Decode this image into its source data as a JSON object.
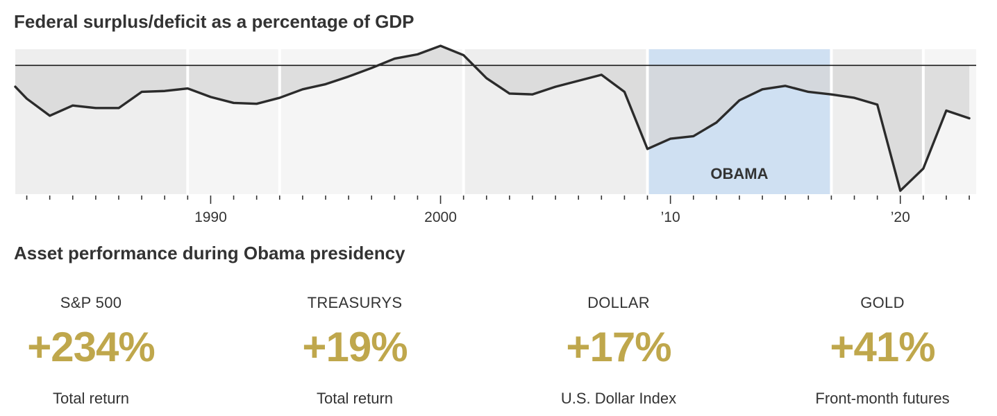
{
  "chart_data": {
    "type": "line",
    "title": "Federal surplus/deficit as a percentage of GDP",
    "xlabel": "",
    "ylabel": "",
    "xlim": [
      1981.5,
      2023.3
    ],
    "ylim": [
      -15.1,
      1.9
    ],
    "baseline": 0,
    "x_tick_labels": [
      {
        "year": 1990,
        "label": "1990"
      },
      {
        "year": 2000,
        "label": "2000"
      },
      {
        "year": 2010,
        "label": "’10"
      },
      {
        "year": 2020,
        "label": "’20"
      }
    ],
    "x": [
      1981,
      1982,
      1983,
      1984,
      1985,
      1986,
      1987,
      1988,
      1989,
      1990,
      1991,
      1992,
      1993,
      1994,
      1995,
      1996,
      1997,
      1998,
      1999,
      2000,
      2001,
      2002,
      2003,
      2004,
      2005,
      2006,
      2007,
      2008,
      2009,
      2010,
      2011,
      2012,
      2013,
      2014,
      2015,
      2016,
      2017,
      2018,
      2019,
      2020,
      2021,
      2022,
      2023
    ],
    "values": [
      -2.5,
      -3.9,
      -5.9,
      -4.7,
      -5.0,
      -5.0,
      -3.1,
      -3.0,
      -2.7,
      -3.7,
      -4.4,
      -4.5,
      -3.8,
      -2.8,
      -2.2,
      -1.3,
      -0.3,
      0.8,
      1.3,
      2.3,
      1.2,
      -1.5,
      -3.3,
      -3.4,
      -2.5,
      -1.8,
      -1.1,
      -3.1,
      -9.8,
      -8.6,
      -8.3,
      -6.7,
      -4.1,
      -2.8,
      -2.4,
      -3.1,
      -3.4,
      -3.8,
      -4.6,
      -14.7,
      -12.1,
      -5.3,
      -6.2
    ],
    "series_name": "Surplus/deficit (% of GDP)",
    "shading": [
      {
        "start": 1981.0,
        "end": 1989.0,
        "shade": "dark",
        "label": ""
      },
      {
        "start": 1989.0,
        "end": 1993.0,
        "shade": "light",
        "label": ""
      },
      {
        "start": 1993.0,
        "end": 2001.0,
        "shade": "light",
        "label": ""
      },
      {
        "start": 2001.0,
        "end": 2009.0,
        "shade": "dark",
        "label": ""
      },
      {
        "start": 2009.0,
        "end": 2017.0,
        "shade": "highlight",
        "label": "OBAMA"
      },
      {
        "start": 2017.0,
        "end": 2021.0,
        "shade": "dark",
        "label": ""
      },
      {
        "start": 2021.0,
        "end": 2023.5,
        "shade": "light",
        "label": ""
      }
    ]
  },
  "colors": {
    "line": "#2b2b2b",
    "baseline": "#1a1a1a",
    "area_fill": "#d6d6d6",
    "band_dark": "#eeeeee",
    "band_light": "#f5f5f5",
    "highlight": "#cfe0f2",
    "tick": "#333333",
    "accent_gold": "#bfa74c",
    "text": "#333333"
  },
  "performance": {
    "title": "Asset performance during Obama presidency",
    "assets": [
      {
        "name": "S&P 500",
        "value": "+234%",
        "note": "Total return"
      },
      {
        "name": "TREASURYS",
        "value": "+19%",
        "note": "Total return"
      },
      {
        "name": "DOLLAR",
        "value": "+17%",
        "note": "U.S. Dollar Index"
      },
      {
        "name": "GOLD",
        "value": "+41%",
        "note": "Front-month futures"
      }
    ]
  }
}
